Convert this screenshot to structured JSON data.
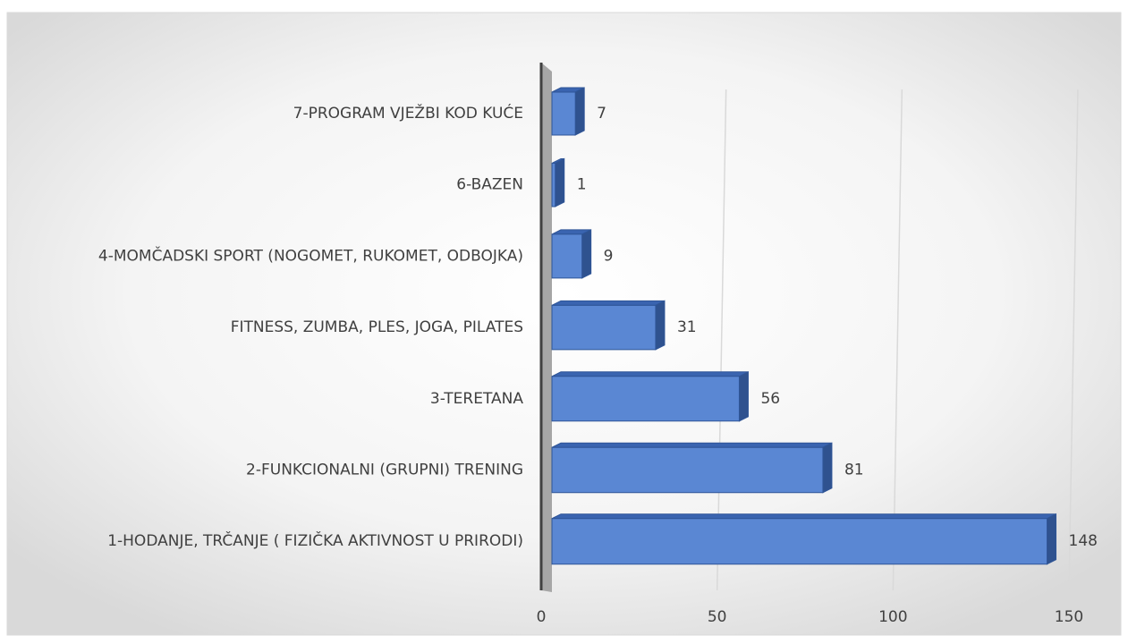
{
  "chart_data": {
    "type": "bar",
    "orientation": "horizontal",
    "categories": [
      "7-PROGRAM VJEŽBI KOD KUĆE",
      "6-BAZEN",
      "4-MOMČADSKI SPORT (NOGOMET, RUKOMET, ODBOJKA)",
      "FITNESS, ZUMBA, PLES, JOGA, PILATES",
      "3-TERETANA",
      "2-FUNKCIONALNI (GRUPNI) TRENING",
      "1-HODANJE, TRČANJE ( FIZIČKA AKTIVNOST U PRIRODI)"
    ],
    "values": [
      7,
      1,
      9,
      31,
      56,
      81,
      148
    ],
    "color": "#4472c4",
    "xlim": [
      0,
      150
    ],
    "xticks": [
      0,
      50,
      100,
      150
    ],
    "grid": true
  }
}
